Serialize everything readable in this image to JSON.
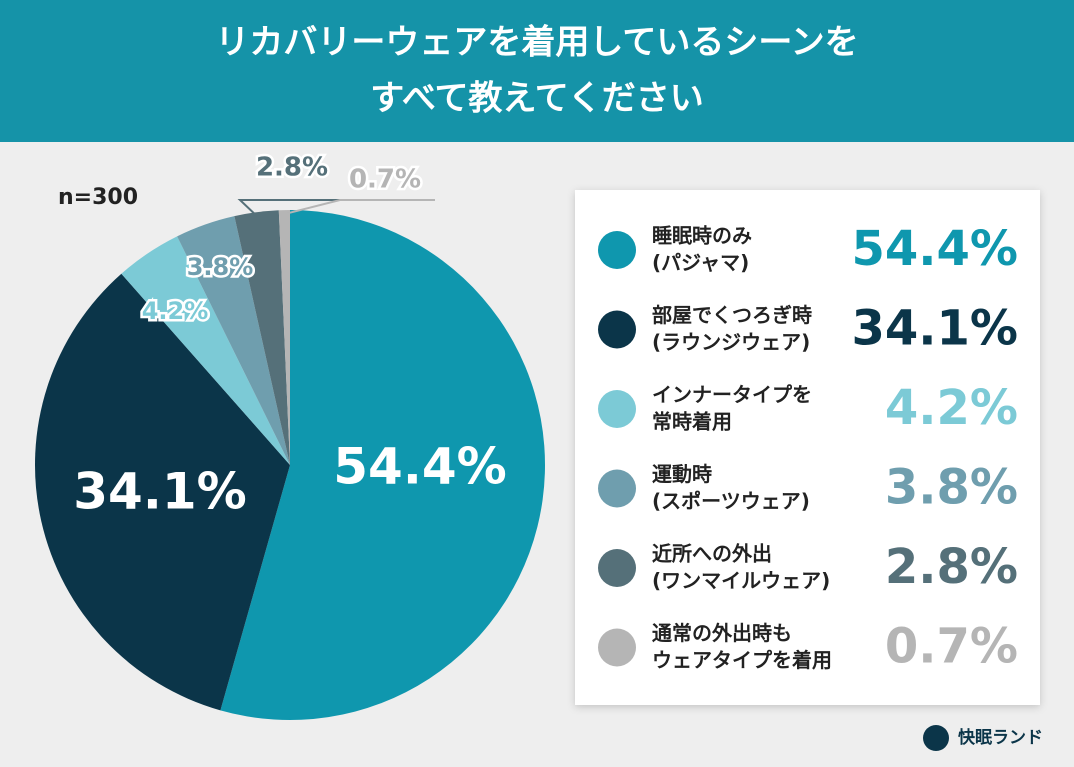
{
  "chart_data": {
    "type": "pie",
    "title": [
      "リカバリーウェアを着用しているシーンを",
      "すべて教えてください"
    ],
    "annotation": "n=300",
    "categories": [
      [
        "睡眠時のみ",
        "(パジャマ)"
      ],
      [
        "部屋でくつろぎ時",
        "(ラウンジウェア)"
      ],
      [
        "インナータイプを",
        "常時着用"
      ],
      [
        "運動時",
        "(スポーツウェア)"
      ],
      [
        "近所への外出",
        "(ワンマイルウェア)"
      ],
      [
        "通常の外出時も",
        "ウェアタイプを着用"
      ]
    ],
    "values": [
      54.4,
      34.1,
      4.2,
      3.8,
      2.8,
      0.7
    ],
    "value_labels": [
      "54.4%",
      "34.1%",
      "4.2%",
      "3.8%",
      "2.8%",
      "0.7%"
    ],
    "colors": [
      "#0f97ae",
      "#0b3549",
      "#7ccad6",
      "#6f9eae",
      "#557079",
      "#b5b5b5"
    ],
    "brand": "快眠ランド"
  }
}
